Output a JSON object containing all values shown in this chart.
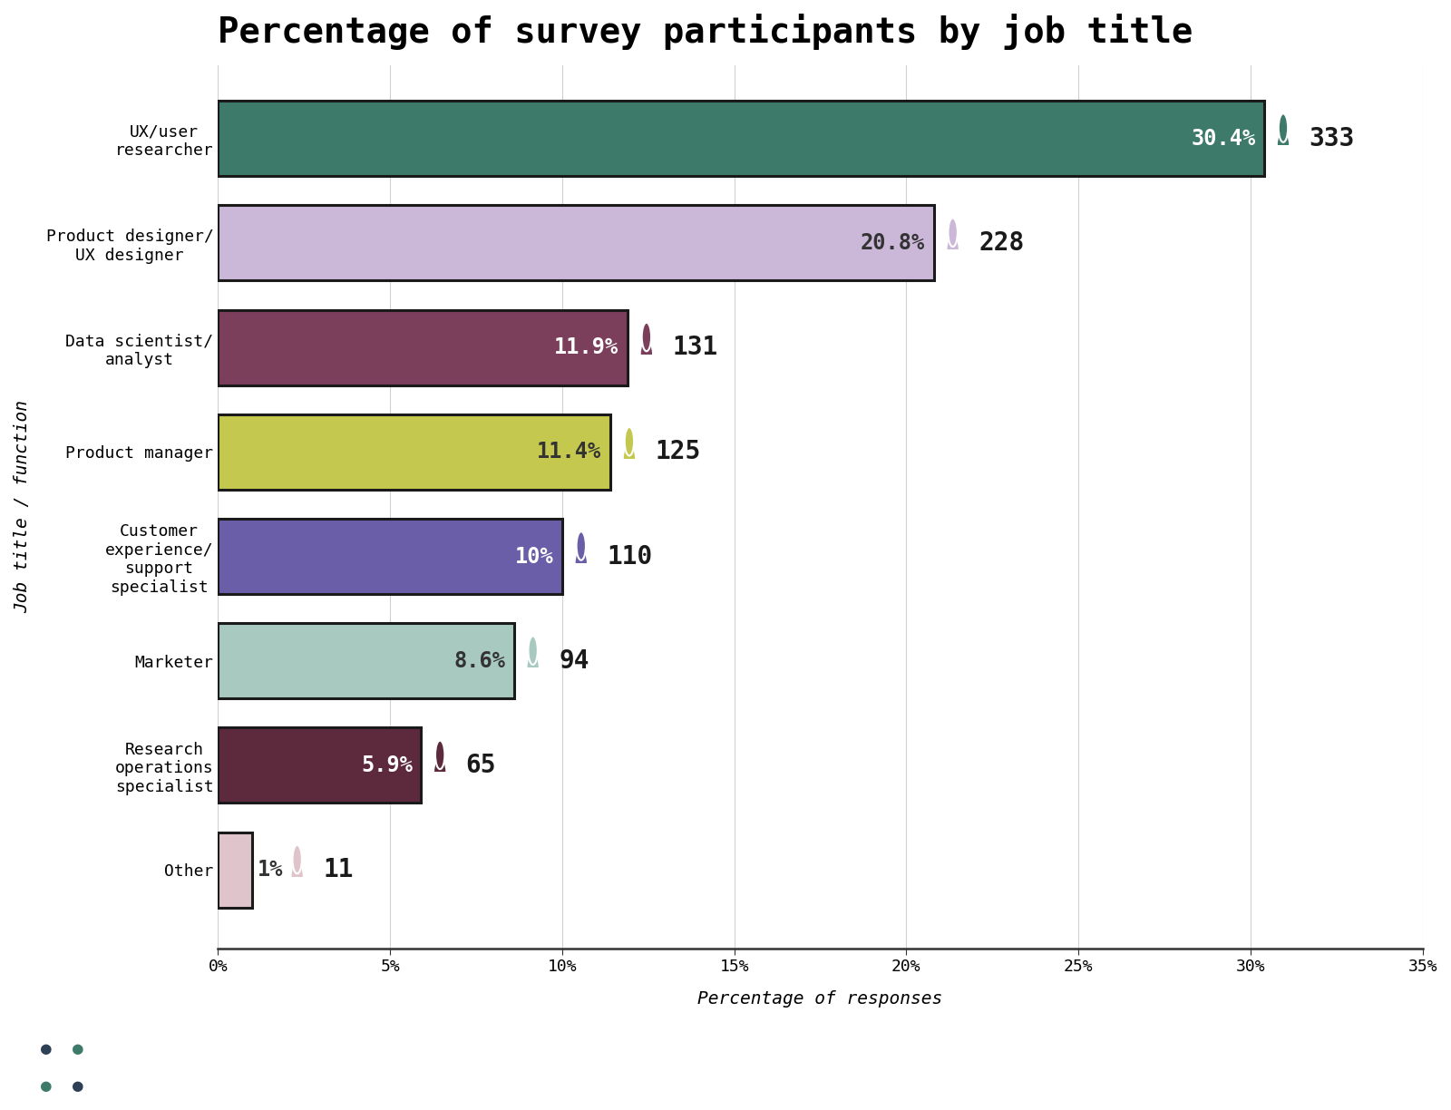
{
  "title": "Percentage of survey participants by job title",
  "categories": [
    "UX/user\nresearcher",
    "Product designer/\nUX designer",
    "Data scientist/\nanalyst",
    "Product manager",
    "Customer\nexperience/\nsupport\nspecialist",
    "Marketer",
    "Research\noperations\nspecialist",
    "Other"
  ],
  "values": [
    30.4,
    20.8,
    11.9,
    11.4,
    10.0,
    8.6,
    5.9,
    1.0
  ],
  "counts": [
    333,
    228,
    131,
    125,
    110,
    94,
    65,
    11
  ],
  "pct_labels": [
    "30.4%",
    "20.8%",
    "11.9%",
    "11.4%",
    "10%",
    "8.6%",
    "5.9%",
    "1%"
  ],
  "pct_inside": [
    true,
    true,
    true,
    true,
    true,
    true,
    true,
    false
  ],
  "bar_colors": [
    "#3d7a6a",
    "#cbb8d8",
    "#7b3f5c",
    "#c4c84e",
    "#6b5ea8",
    "#a8c9bf",
    "#5c2a3c",
    "#e0c4cc"
  ],
  "bar_edge_colors": [
    "#1a1a1a",
    "#1a1a1a",
    "#1a1a1a",
    "#1a1a1a",
    "#1a1a1a",
    "#1a1a1a",
    "#1a1a1a",
    "#1a1a1a"
  ],
  "icon_colors": [
    "#3d7a6a",
    "#cbb8d8",
    "#7b3f5c",
    "#c4c84e",
    "#6b5ea8",
    "#a8c9bf",
    "#5c2a3c",
    "#e0c4cc"
  ],
  "pct_label_colors": [
    "#ffffff",
    "#333333",
    "#ffffff",
    "#333333",
    "#ffffff",
    "#333333",
    "#ffffff",
    "#333333"
  ],
  "xlabel": "Percentage of responses",
  "ylabel": "Job title / function",
  "xlim": [
    0,
    35
  ],
  "xticks": [
    0,
    5,
    10,
    15,
    20,
    25,
    30,
    35
  ],
  "xtick_labels": [
    "0%",
    "5%",
    "10%",
    "15%",
    "20%",
    "25%",
    "30%",
    "35%"
  ],
  "background_color": "#ffffff",
  "title_fontsize": 28,
  "label_fontsize": 13,
  "tick_fontsize": 13,
  "bar_height": 0.72,
  "logo_dark": "#2d4055",
  "logo_teal": "#3d7a6a"
}
